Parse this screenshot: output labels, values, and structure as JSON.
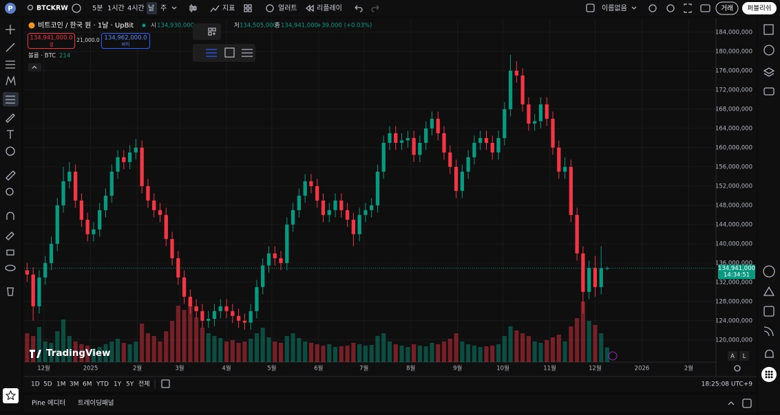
{
  "toolbar": {
    "avatar": "P",
    "symbol": "BTCKRW",
    "intervals": [
      "5분",
      "1시간",
      "4시간",
      "날",
      "주"
    ],
    "indicators": "지표",
    "alert": "얼러트",
    "replay": "리플레이",
    "layout_name": "이름없음",
    "trade": "거래",
    "publish": "퍼블리쉬"
  },
  "legend": {
    "open_label": "시",
    "open": "134,930,000",
    "low_label": "저",
    "low": "134,505,000",
    "close_label": "종",
    "close": "134,941,000",
    "change": "+39,000 (+0.03%)",
    "sell_price": "134,941,000.0",
    "sell": "셀",
    "spread": "21,000.0",
    "buy_price": "134,962,000.0",
    "buy": "바이",
    "volume_label": "볼륨 · BTC"
  },
  "chart_data": {
    "type": "candlestick",
    "title": "비트코인 / 한국 원 · 1날 · UpBit",
    "x": [
      0,
      4,
      8,
      12,
      16,
      20,
      24,
      28,
      32,
      36,
      40,
      44,
      48,
      52,
      56,
      60,
      64,
      68,
      72,
      76,
      80,
      84,
      88,
      92,
      96,
      100,
      104,
      108,
      112,
      116,
      120,
      124,
      128,
      132,
      136,
      140,
      144,
      148,
      152,
      156,
      160,
      164,
      168,
      172,
      176,
      180,
      184,
      188,
      192,
      196,
      200,
      204,
      208,
      212,
      216,
      220,
      224,
      228,
      232,
      236,
      240,
      244,
      248,
      252,
      256,
      260,
      264,
      268,
      272,
      276,
      280,
      284,
      288,
      292,
      296,
      300,
      304,
      308,
      312,
      316,
      320,
      324,
      328,
      332,
      336,
      340,
      344,
      348,
      352,
      356,
      360,
      364,
      368,
      372,
      376,
      380,
      384
    ],
    "open": [
      134500000.0,
      133600000.0,
      127000000.0,
      133000000.0,
      136000000.0,
      140000000.0,
      148000000.0,
      153000000.0,
      155000000.0,
      149000000.0,
      145000000.0,
      142000000.0,
      143000000.0,
      147000000.0,
      150000000.0,
      155000000.0,
      158000000.0,
      157000000.0,
      159000000.0,
      160000000.0,
      152000000.0,
      149000000.0,
      147000000.0,
      146000000.0,
      141000000.0,
      137000000.0,
      133000000.0,
      129000000.0,
      127000000.0,
      126000000.0,
      124000000.0,
      124400000.0,
      126000000.0,
      127000000.0,
      126000000.0,
      125000000.0,
      124000000.0,
      123600000.0,
      126000000.0,
      131000000.0,
      135500000.0,
      138000000.0,
      137000000.0,
      136000000.0,
      144000000.0,
      147000000.0,
      150000000.0,
      153000000.0,
      152000000.0,
      149000000.0,
      146000000.0,
      147000000.0,
      149000000.0,
      147000000.0,
      145000000.0,
      142000000.0,
      146000000.0,
      147000000.0,
      148000000.0,
      155000000.0,
      161000000.0,
      163000000.0,
      161000000.0,
      161500000.0,
      162000000.0,
      158500000.0,
      161000000.0,
      164000000.0,
      166000000.0,
      163000000.0,
      159000000.0,
      156000000.0,
      151000000.0,
      155000000.0,
      158000000.0,
      161000000.0,
      162000000.0,
      161000000.0,
      159000000.0,
      162000000.0,
      168000000.0,
      176000000.0,
      175000000.0,
      169000000.0,
      165000000.0,
      165500000.0,
      169000000.0,
      166000000.0,
      160000000.0,
      155000000.0,
      156000000.0,
      146000000.0,
      138000000.0,
      130000000.0,
      135000000.0,
      131000000.0,
      134930000.0
    ],
    "high": [
      136000000.0,
      135100000.0,
      134500000.0,
      137500000.0,
      141500000.0,
      149500000.0,
      156000000.0,
      157000000.0,
      156500000.0,
      150500000.0,
      146500000.0,
      144500000.0,
      148500000.0,
      151500000.0,
      156500000.0,
      159500000.0,
      159500000.0,
      160500000.0,
      161800000.0,
      161500000.0,
      153500000.0,
      150500000.0,
      148500000.0,
      147500000.0,
      142500000.0,
      138500000.0,
      134500000.0,
      130500000.0,
      128500000.0,
      127500000.0,
      126000000.0,
      127500000.0,
      128500000.0,
      128500000.0,
      127500000.0,
      126500000.0,
      125500000.0,
      127500000.0,
      132500000.0,
      137000000.0,
      139500000.0,
      139500000.0,
      138500000.0,
      145500000.0,
      148500000.0,
      151500000.0,
      154500000.0,
      154500000.0,
      153500000.0,
      150500000.0,
      148500000.0,
      150500000.0,
      150500000.0,
      148500000.0,
      146500000.0,
      147500000.0,
      148500000.0,
      149500000.0,
      156500000.0,
      162500000.0,
      164500000.0,
      164500000.0,
      163000000.0,
      163500000.0,
      163500000.0,
      162500000.0,
      165500000.0,
      167500000.0,
      167500000.0,
      164500000.0,
      160500000.0,
      157500000.0,
      156500000.0,
      159500000.0,
      162500000.0,
      163500000.0,
      163500000.0,
      162500000.0,
      163500000.0,
      169500000.0,
      179300000.0,
      178000000.0,
      176500000.0,
      170500000.0,
      167000000.0,
      170500000.0,
      170500000.0,
      167500000.0,
      161500000.0,
      158000000.0,
      157500000.0,
      147500000.0,
      139500000.0,
      136500000.0,
      137500000.0,
      139500000.0,
      135300000.0
    ],
    "low": [
      132100000.0,
      124000000.0,
      125500000.0,
      131500000.0,
      134500000.0,
      138500000.0,
      146500000.0,
      151500000.0,
      147500000.0,
      143500000.0,
      140500000.0,
      140500000.0,
      141500000.0,
      145500000.0,
      148500000.0,
      153500000.0,
      155500000.0,
      155500000.0,
      157500000.0,
      150500000.0,
      147500000.0,
      145500000.0,
      144500000.0,
      139500000.0,
      135500000.0,
      131500000.0,
      127500000.0,
      125500000.0,
      124500000.0,
      122500000.0,
      122500000.0,
      122900000.0,
      124500000.0,
      124500000.0,
      123500000.0,
      122500000.0,
      122100000.0,
      122100000.0,
      124500000.0,
      129500000.0,
      134000000.0,
      135500000.0,
      134500000.0,
      134500000.0,
      142500000.0,
      145500000.0,
      148500000.0,
      150500000.0,
      147500000.0,
      144500000.0,
      144500000.0,
      145500000.0,
      145500000.0,
      143500000.0,
      139500000.0,
      140500000.0,
      144500000.0,
      145500000.0,
      146500000.0,
      153500000.0,
      159500000.0,
      159500000.0,
      159500000.0,
      160000000.0,
      157000000.0,
      157000000.0,
      159500000.0,
      162500000.0,
      161500000.0,
      157500000.0,
      154500000.0,
      149500000.0,
      149500000.0,
      153500000.0,
      156500000.0,
      159500000.0,
      159500000.0,
      157500000.0,
      157500000.0,
      160500000.0,
      166500000.0,
      173500000.0,
      167500000.0,
      163500000.0,
      163500000.0,
      164000000.0,
      164500000.0,
      158500000.0,
      153500000.0,
      153500000.0,
      144500000.0,
      136500000.0,
      125500000.0,
      128500000.0,
      129000000.0,
      129500000.0,
      134505000.0
    ],
    "close": [
      133600000.0,
      127000000.0,
      133000000.0,
      136000000.0,
      140000000.0,
      148000000.0,
      153000000.0,
      155000000.0,
      149000000.0,
      145000000.0,
      142000000.0,
      143000000.0,
      147000000.0,
      150000000.0,
      155000000.0,
      158000000.0,
      157000000.0,
      159000000.0,
      160000000.0,
      152000000.0,
      149000000.0,
      147000000.0,
      146000000.0,
      141000000.0,
      137000000.0,
      133000000.0,
      129000000.0,
      127000000.0,
      126000000.0,
      124000000.0,
      124400000.0,
      126000000.0,
      127000000.0,
      126000000.0,
      125000000.0,
      124000000.0,
      123600000.0,
      126000000.0,
      131000000.0,
      135500000.0,
      138000000.0,
      137000000.0,
      136000000.0,
      144000000.0,
      147000000.0,
      150000000.0,
      153000000.0,
      152000000.0,
      149000000.0,
      146000000.0,
      147000000.0,
      149000000.0,
      147000000.0,
      145000000.0,
      142000000.0,
      146000000.0,
      147000000.0,
      148000000.0,
      155000000.0,
      161000000.0,
      163000000.0,
      161000000.0,
      161500000.0,
      162000000.0,
      158500000.0,
      161000000.0,
      164000000.0,
      166000000.0,
      163000000.0,
      159000000.0,
      156000000.0,
      151000000.0,
      155000000.0,
      158000000.0,
      161000000.0,
      162000000.0,
      161000000.0,
      159000000.0,
      162000000.0,
      168000000.0,
      176000000.0,
      175000000.0,
      169000000.0,
      165000000.0,
      165500000.0,
      169000000.0,
      166000000.0,
      160000000.0,
      155000000.0,
      156000000.0,
      146000000.0,
      138000000.0,
      130000000.0,
      135000000.0,
      131000000.0,
      134902000.0,
      134941000.0
    ],
    "volume": [
      420,
      380,
      510,
      300,
      280,
      450,
      620,
      380,
      300,
      260,
      240,
      200,
      220,
      260,
      300,
      340,
      280,
      260,
      300,
      560,
      420,
      380,
      300,
      450,
      600,
      820,
      760,
      900,
      650,
      500,
      420,
      380,
      350,
      300,
      320,
      280,
      300,
      340,
      420,
      500,
      360,
      300,
      280,
      380,
      420,
      350,
      300,
      280,
      260,
      240,
      260,
      220,
      230,
      240,
      280,
      260,
      240,
      250,
      380,
      420,
      300,
      260,
      240,
      220,
      260,
      240,
      230,
      280,
      260,
      300,
      340,
      420,
      300,
      260,
      240,
      220,
      230,
      240,
      260,
      380,
      520,
      460,
      420,
      380,
      300,
      280,
      320,
      360,
      400,
      300,
      520,
      640,
      880,
      600,
      540,
      420,
      214
    ],
    "up_color": "#089981",
    "down_color": "#f23645",
    "grid": true,
    "xlim": [
      -2,
      456
    ],
    "xticks": [
      {
        "value": 11,
        "label": "12월"
      },
      {
        "value": 42,
        "label": "2025"
      },
      {
        "value": 73,
        "label": "2월"
      },
      {
        "value": 101,
        "label": "3월"
      },
      {
        "value": 132,
        "label": "4월"
      },
      {
        "value": 162,
        "label": "5월"
      },
      {
        "value": 193,
        "label": "6월"
      },
      {
        "value": 223,
        "label": "7월"
      },
      {
        "value": 254,
        "label": "8월"
      },
      {
        "value": 285,
        "label": "9월"
      },
      {
        "value": 315,
        "label": "10월"
      },
      {
        "value": 346,
        "label": "11월"
      },
      {
        "value": 376,
        "label": "12월"
      },
      {
        "value": 407,
        "label": "2026"
      },
      {
        "value": 438,
        "label": "2월"
      }
    ],
    "ylim": [
      115400000.0,
      186700000.0
    ],
    "yticks": [
      {
        "value": 120000000.0,
        "label": "120,000,000"
      },
      {
        "value": 124000000.0,
        "label": "124,000,000"
      },
      {
        "value": 128000000.0,
        "label": "128,000,000"
      },
      {
        "value": 132000000.0,
        "label": "132,000,000"
      },
      {
        "value": 136000000.0,
        "label": "136,000,000"
      },
      {
        "value": 140000000.0,
        "label": "140,000,000"
      },
      {
        "value": 144000000.0,
        "label": "144,000,000"
      },
      {
        "value": 148000000.0,
        "label": "148,000,000"
      },
      {
        "value": 152000000.0,
        "label": "152,000,000"
      },
      {
        "value": 156000000.0,
        "label": "156,000,000"
      },
      {
        "value": 160000000.0,
        "label": "160,000,000"
      },
      {
        "value": 164000000.0,
        "label": "164,000,000"
      },
      {
        "value": 168000000.0,
        "label": "168,000,000"
      },
      {
        "value": 172000000.0,
        "label": "172,000,000"
      },
      {
        "value": 176000000.0,
        "label": "176,000,000"
      },
      {
        "value": 180000000.0,
        "label": "180,000,000"
      },
      {
        "value": 184000000.0,
        "label": "184,000,000"
      }
    ],
    "last_price_label": "134,941,000",
    "countdown": "14:34:51",
    "watermark": "TradingView"
  },
  "bottom_bar": {
    "ranges": [
      "1D",
      "5D",
      "1M",
      "3M",
      "6M",
      "YTD",
      "1Y",
      "5Y",
      "전체"
    ],
    "clock": "18:25:08 UTC+9",
    "scale_buttons": [
      "A",
      "L"
    ]
  },
  "panel": {
    "tabs": [
      "Pine 에디터",
      "트레이딩패널"
    ]
  }
}
